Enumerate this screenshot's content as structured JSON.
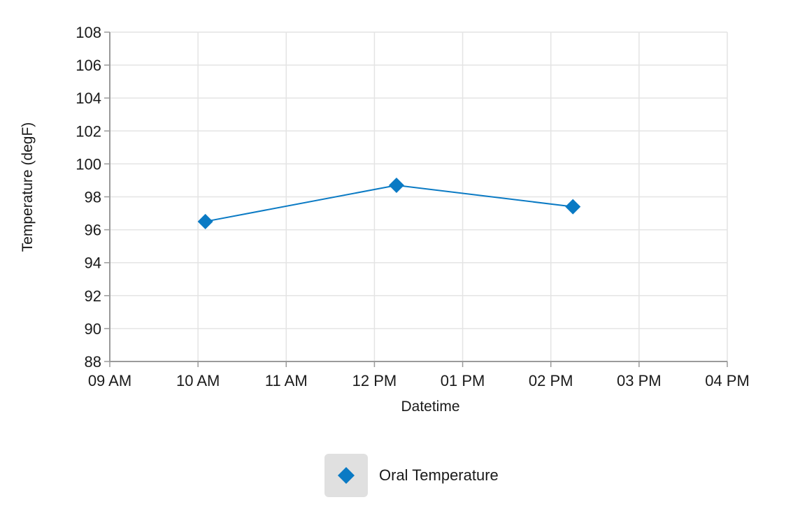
{
  "chart_data": {
    "type": "line",
    "xlabel": "Datetime",
    "ylabel": "Temperature (degF)",
    "x_ticks": [
      "09 AM",
      "10 AM",
      "11 AM",
      "12 PM",
      "01 PM",
      "02 PM",
      "03 PM",
      "04 PM"
    ],
    "y_ticks": [
      88,
      90,
      92,
      94,
      96,
      98,
      100,
      102,
      104,
      106,
      108
    ],
    "xlim": [
      "09:00",
      "16:00"
    ],
    "ylim": [
      88,
      108
    ],
    "grid": true,
    "legend_position": "bottom",
    "series": [
      {
        "name": "Oral Temperature",
        "color": "#0a7ac4",
        "marker": "diamond",
        "points": [
          {
            "x": "10:05",
            "y": 96.5
          },
          {
            "x": "12:15",
            "y": 98.7
          },
          {
            "x": "14:15",
            "y": 97.4
          }
        ]
      }
    ]
  }
}
